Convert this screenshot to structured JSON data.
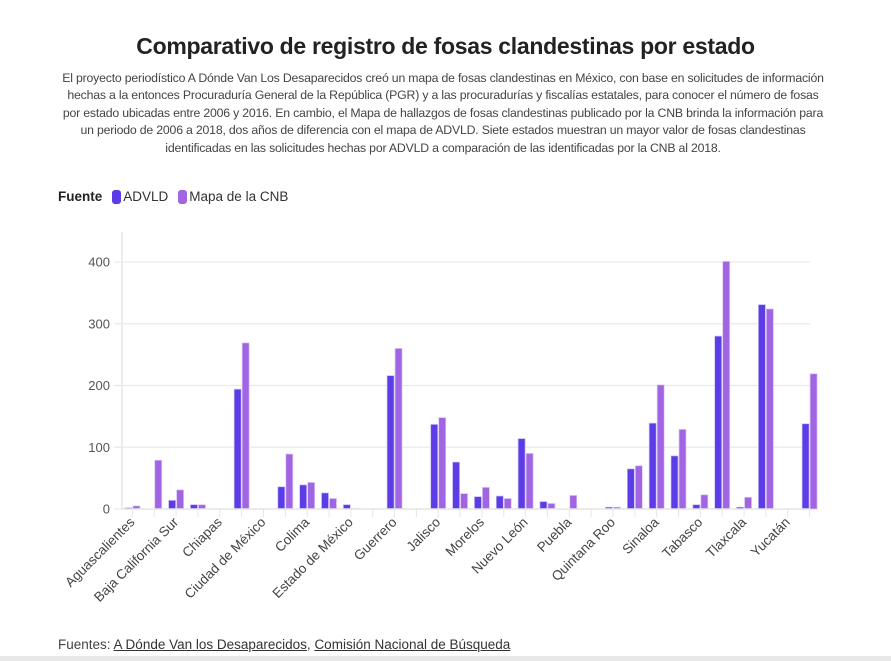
{
  "header": {
    "title": "Comparativo de registro de fosas clandestinas por estado",
    "description": "El proyecto periodístico A Dónde Van Los Desaparecidos creó un mapa de fosas clandestinas en México, con base en solicitudes de información hechas a la entonces Procuraduría General de la República (PGR) y a las procuradurías y fiscalías estatales, para conocer el número de fosas por estado ubicadas entre 2006 y 2016. En cambio, el Mapa de hallazgos de fosas clandestinas publicado por la CNB brinda la información para un periodo de 2006 a 2018, dos años de diferencia con el mapa de ADVLD. Siete estados muestran un mayor valor de fosas clandestinas identificadas en las solicitudes hechas por ADVLD a comparación de las identificadas por la CNB al 2018."
  },
  "legend": {
    "title": "Fuente",
    "items": [
      {
        "label": "ADVLD",
        "color": "#5b3ce6"
      },
      {
        "label": "Mapa de la CNB",
        "color": "#a165e4"
      }
    ]
  },
  "footer": {
    "prefix": "Fuentes: ",
    "links": [
      "A Dónde Van los Desaparecidos",
      "Comisión Nacional de Búsqueda"
    ],
    "separator": ", "
  },
  "chart_data": {
    "type": "bar",
    "categories": [
      "Aguascalientes",
      "",
      "Baja California Sur",
      "",
      "Chiapas",
      "",
      "Ciudad de México",
      "",
      "Colima",
      "",
      "Estado de México",
      "",
      "Guerrero",
      "",
      "Jalisco",
      "",
      "Morelos",
      "",
      "Nuevo León",
      "",
      "Puebla",
      "",
      "Quintana Roo",
      "",
      "Sinaloa",
      "",
      "Tabasco",
      "",
      "Tlaxcala",
      "",
      "Yucatán",
      ""
    ],
    "series": [
      {
        "name": "ADVLD",
        "color": "#5b3ce6",
        "values": [
          2,
          0,
          14,
          7,
          0,
          194,
          0,
          36,
          39,
          26,
          7,
          0,
          216,
          0,
          137,
          76,
          20,
          21,
          114,
          12,
          0,
          0,
          3,
          65,
          139,
          86,
          7,
          280,
          3,
          331,
          0,
          138
        ]
      },
      {
        "name": "Mapa de la CNB",
        "color": "#a165e4",
        "values": [
          5,
          79,
          31,
          7,
          0,
          269,
          0,
          89,
          43,
          17,
          1,
          0,
          260,
          0,
          148,
          25,
          35,
          17,
          90,
          9,
          22,
          0,
          3,
          70,
          201,
          129,
          23,
          401,
          19,
          324,
          0,
          219
        ]
      }
    ],
    "yticks": [
      0,
      100,
      200,
      300,
      400
    ],
    "ylim": [
      0,
      400
    ],
    "grid": true,
    "legend_position": "top-left"
  }
}
